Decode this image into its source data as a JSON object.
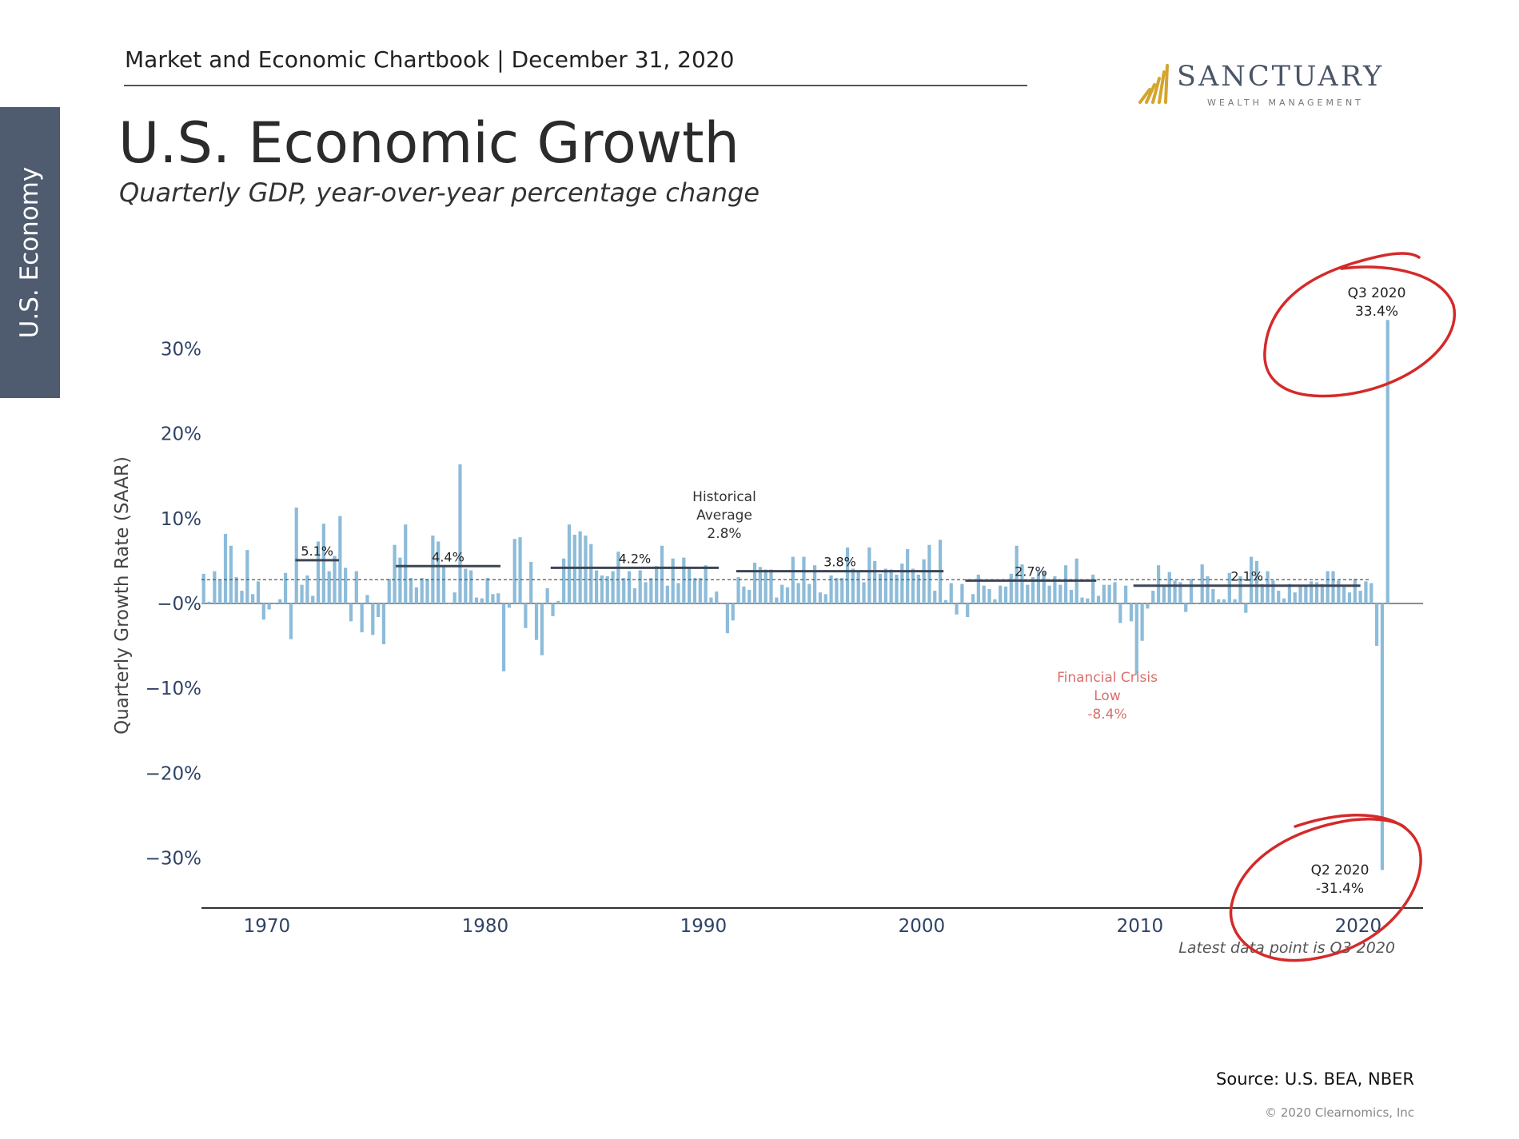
{
  "side_tab": "U.S. Economy",
  "header": {
    "text": "Market and Economic Chartbook | December 31, 2020",
    "logo_name": "SANCTUARY",
    "logo_sub": "WEALTH MANAGEMENT"
  },
  "page": {
    "title": "U.S. Economic Growth",
    "subtitle": "Quarterly GDP, year-over-year percentage change"
  },
  "footer": {
    "source": "Source: U.S. BEA, NBER",
    "copyright": "© 2020 Clearnomics, Inc"
  },
  "colors": {
    "bar": "#8dbcd9",
    "avg_line": "#3d4556",
    "circle": "#d42a2a",
    "crisis": "#d9706c",
    "side_tab": "#4f5b6e",
    "logo_gold": "#d4a52c"
  },
  "chart_data": {
    "type": "bar",
    "ylabel": "Quarterly Growth Rate (SAAR)",
    "ylim": [
      -36,
      36
    ],
    "yticks": [
      30,
      20,
      10,
      0,
      -10,
      -20,
      -30
    ],
    "ytick_labels": [
      "30%",
      "20%",
      "10%",
      "−0%",
      "−10%",
      "−20%",
      "−30%"
    ],
    "xlim": [
      1967,
      2022.8
    ],
    "xticks": [
      1970,
      1980,
      1990,
      2000,
      2010,
      2020
    ],
    "xtick_labels": [
      "1970",
      "1980",
      "1990",
      "2000",
      "2010",
      "2020"
    ],
    "start_quarter": "1967 Q1",
    "values": [
      3.5,
      0.2,
      3.8,
      2.8,
      8.2,
      6.8,
      3.1,
      1.5,
      6.3,
      1.1,
      2.6,
      -1.9,
      -0.7,
      0.0,
      0.5,
      3.6,
      -4.2,
      11.3,
      2.2,
      3.3,
      0.9,
      7.3,
      9.4,
      3.8,
      5.6,
      10.3,
      4.2,
      -2.1,
      3.8,
      -3.4,
      1.0,
      -3.7,
      -1.6,
      -4.8,
      2.9,
      6.9,
      5.4,
      9.3,
      3.0,
      1.9,
      3.0,
      2.9,
      8.0,
      7.3,
      4.4,
      0.0,
      1.3,
      16.4,
      4.1,
      3.9,
      0.7,
      0.6,
      3.0,
      1.1,
      1.2,
      -8.0,
      -0.5,
      7.6,
      7.8,
      -2.9,
      4.9,
      -4.3,
      -6.1,
      1.8,
      -1.5,
      0.3,
      5.3,
      9.3,
      8.1,
      8.5,
      8.0,
      7.0,
      3.9,
      3.3,
      3.2,
      3.8,
      6.1,
      3.0,
      3.8,
      1.8,
      3.9,
      2.5,
      3.0,
      4.4,
      6.8,
      2.1,
      5.3,
      2.4,
      5.4,
      4.1,
      3.0,
      3.0,
      4.5,
      0.7,
      1.4,
      -0.1,
      -3.5,
      -2.0,
      3.1,
      2.0,
      1.6,
      4.8,
      4.3,
      4.0,
      4.0,
      0.7,
      2.2,
      1.9,
      5.5,
      2.4,
      5.5,
      2.3,
      4.5,
      1.3,
      1.1,
      3.3,
      3.0,
      3.0,
      6.6,
      4.1,
      3.8,
      2.5,
      6.6,
      5.0,
      3.5,
      4.1,
      4.0,
      3.4,
      4.7,
      6.4,
      4.1,
      3.4,
      5.2,
      6.9,
      1.5,
      7.5,
      0.4,
      2.4,
      -1.3,
      2.3,
      -1.6,
      1.1,
      3.4,
      2.1,
      1.7,
      0.5,
      2.1,
      2.0,
      3.5,
      6.8,
      4.6,
      2.2,
      3.1,
      3.8,
      3.8,
      2.1,
      3.2,
      2.2,
      4.5,
      1.6,
      5.3,
      0.7,
      0.6,
      3.4,
      0.9,
      2.2,
      2.2,
      2.5,
      -2.3,
      2.1,
      -2.1,
      -8.4,
      -4.4,
      -0.6,
      1.5,
      4.5,
      2.0,
      3.7,
      2.7,
      2.5,
      -1.0,
      2.9,
      0.0,
      4.6,
      3.2,
      1.7,
      0.5,
      0.5,
      3.6,
      0.5,
      3.2,
      -1.1,
      5.5,
      5.0,
      2.3,
      3.8,
      2.7,
      1.5,
      0.6,
      2.3,
      1.3,
      2.0,
      2.2,
      2.6,
      2.5,
      2.3,
      3.8,
      3.8,
      2.7,
      2.1,
      1.3,
      2.9,
      1.5,
      2.6,
      2.4,
      -5.0,
      -31.4,
      33.4
    ],
    "period_averages": [
      {
        "label": "5.1%",
        "value": 5.1,
        "from": 1971.3,
        "to": 1973.3
      },
      {
        "label": "4.4%",
        "value": 4.4,
        "from": 1975.9,
        "to": 1980.7
      },
      {
        "label": "4.2%",
        "value": 4.2,
        "from": 1983.0,
        "to": 1990.7
      },
      {
        "label": "3.8%",
        "value": 3.8,
        "from": 1991.5,
        "to": 2001.0
      },
      {
        "label": "2.7%",
        "value": 2.7,
        "from": 2002.0,
        "to": 2008.0
      },
      {
        "label": "2.1%",
        "value": 2.1,
        "from": 2009.7,
        "to": 2020.1
      }
    ],
    "historical_average": {
      "value": 2.8,
      "label_lines": [
        "Historical",
        "Average",
        "2.8%"
      ]
    },
    "annotations": {
      "crisis_lines": [
        "Financial Crisis",
        "Low",
        "-8.4%"
      ],
      "q3_label": "Q3 2020",
      "q3_value_label": "33.4%",
      "q2_label": "Q2 2020",
      "q2_value_label": "-31.4%",
      "latest_note": "Latest data point is Q3 2020"
    }
  }
}
